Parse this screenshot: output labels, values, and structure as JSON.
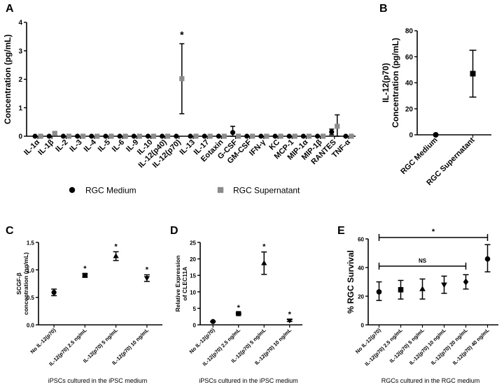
{
  "chart_data": [
    {
      "panel": "A",
      "type": "scatter",
      "ylabel": "Concentration (pg/mL)",
      "ylim": [
        0,
        4
      ],
      "yticks": [
        "0",
        "1",
        "2",
        "3",
        "4"
      ],
      "categories": [
        "IL-1α",
        "IL-1β",
        "IL-2",
        "IL-3",
        "IL-4",
        "IL-5",
        "IL-6",
        "IL-9",
        "IL-10",
        "IL-12(p40)",
        "IL-12(p70)",
        "IL-13",
        "IL-17",
        "Eotaxin",
        "G-CSF",
        "GM-CSF",
        "IFN-γ",
        "KC",
        "MCP-1",
        "MIP-1α",
        "MIP-1β",
        "RANTES",
        "TNF-α"
      ],
      "series": [
        {
          "name": "RGC Medium",
          "marker": "circle",
          "color": "#000000",
          "values": [
            0,
            0,
            0,
            0,
            0,
            0,
            0,
            0,
            0,
            0,
            0,
            0,
            0,
            0,
            0.13,
            0,
            0,
            0,
            0,
            0,
            0,
            0.15,
            0
          ],
          "err": [
            0,
            0,
            0,
            0,
            0,
            0,
            0,
            0,
            0,
            0,
            0,
            0,
            0,
            0,
            0.22,
            0,
            0,
            0,
            0,
            0,
            0,
            0.1,
            0
          ]
        },
        {
          "name": "RGC Supernatant",
          "marker": "square",
          "color": "#8c8c8c",
          "values": [
            0,
            0.1,
            0,
            0,
            0,
            0,
            0,
            0,
            0,
            0,
            2.02,
            0,
            0,
            0,
            0,
            0,
            0,
            0,
            0,
            0,
            0,
            0.35,
            0
          ],
          "err": [
            0,
            0.05,
            0,
            0,
            0,
            0,
            0,
            0,
            0,
            0,
            1.23,
            0,
            0,
            0,
            0,
            0,
            0,
            0,
            0,
            0,
            0,
            0.4,
            0
          ]
        }
      ],
      "annotations": [
        {
          "category": "IL-12(p70)",
          "text": "*"
        }
      ],
      "legend": [
        {
          "label": "RGC Medium",
          "marker": "circle"
        },
        {
          "label": "RGC Supernatant",
          "marker": "square"
        }
      ]
    },
    {
      "panel": "B",
      "type": "scatter",
      "ylabel": [
        "IL-12(p70)",
        "Concentration (pg/mL)"
      ],
      "ylim": [
        0,
        80
      ],
      "yticks": [
        "0",
        "20",
        "40",
        "60",
        "80"
      ],
      "categories": [
        "RGC Medium",
        "RGC Supernatant"
      ],
      "points": [
        {
          "value": 0,
          "low": 0,
          "high": 0,
          "marker": "circle"
        },
        {
          "value": 47,
          "low": 29,
          "high": 65,
          "marker": "square"
        }
      ]
    },
    {
      "panel": "C",
      "type": "scatter",
      "ylabel": [
        "SCGF-β",
        "concentration (ng/mL)"
      ],
      "xlabel": "iPSCs cultured in the iPSC medium",
      "ylim": [
        0,
        1.5
      ],
      "yticks": [
        "0.0",
        "0.5",
        "1.0",
        "1.5"
      ],
      "categories": [
        "No IL-12(p70)",
        "IL-12(p70) 2.5 ng/mL",
        "IL-12(p70) 5 ng/mL",
        "IL-12(p70) 10 ng/mL"
      ],
      "points": [
        {
          "value": 0.59,
          "low": 0.53,
          "high": 0.65,
          "marker": "circle"
        },
        {
          "value": 0.9,
          "low": 0.87,
          "high": 0.93,
          "marker": "square"
        },
        {
          "value": 1.25,
          "low": 1.17,
          "high": 1.33,
          "marker": "triangle"
        },
        {
          "value": 0.85,
          "low": 0.79,
          "high": 0.91,
          "marker": "triangle-down"
        }
      ],
      "annotations": [
        {
          "category": "IL-12(p70) 2.5 ng/mL",
          "text": "*"
        },
        {
          "category": "IL-12(p70) 5 ng/mL",
          "text": "*"
        },
        {
          "category": "IL-12(p70) 10 ng/mL",
          "text": "*"
        }
      ]
    },
    {
      "panel": "D",
      "type": "scatter",
      "ylabel": [
        "Relative Expression",
        "of CLEC11A"
      ],
      "xlabel": "iPSCs cultured in the iPSC medium",
      "ylim": [
        0,
        25
      ],
      "yticks": [
        "0",
        "5",
        "10",
        "15",
        "20",
        "25"
      ],
      "categories": [
        "No IL-12(p70)",
        "IL-12(p70) 2.5 ng/mL",
        "IL-12(p70) 5 ng/mL",
        "IL-12(p70) 10 ng/mL"
      ],
      "points": [
        {
          "value": 1,
          "low": 0.9,
          "high": 1.1,
          "marker": "circle"
        },
        {
          "value": 3.4,
          "low": 3.2,
          "high": 3.6,
          "marker": "square"
        },
        {
          "value": 18.7,
          "low": 15.3,
          "high": 22.1,
          "marker": "triangle"
        },
        {
          "value": 1.3,
          "low": 1.0,
          "high": 1.6,
          "marker": "triangle-down"
        }
      ],
      "annotations": [
        {
          "category": "IL-12(p70) 2.5 ng/mL",
          "text": "*"
        },
        {
          "category": "IL-12(p70) 5 ng/mL",
          "text": "*"
        },
        {
          "category": "IL-12(p70) 10 ng/mL",
          "text": "*"
        }
      ]
    },
    {
      "panel": "E",
      "type": "scatter",
      "ylabel": "% RGC Survival",
      "xlabel": "RGCs cultured in the RGC medium",
      "ylim": [
        0,
        60
      ],
      "yticks": [
        "0",
        "20",
        "40",
        "60"
      ],
      "categories": [
        "No IL-12(p70)",
        "IL-12(p70) 2.5 ng/mL",
        "IL-12(p70) 5 ng/mL",
        "IL-12(p70) 10 ng/mL",
        "IL-12(p70) 20 ng/mL",
        "IL-12(p70) 40 ng/mL"
      ],
      "points": [
        {
          "value": 23,
          "low": 17,
          "high": 30,
          "marker": "circle"
        },
        {
          "value": 24.5,
          "low": 18,
          "high": 31,
          "marker": "square"
        },
        {
          "value": 25,
          "low": 18,
          "high": 32,
          "marker": "triangle"
        },
        {
          "value": 28,
          "low": 22,
          "high": 34,
          "marker": "triangle-down"
        },
        {
          "value": 30,
          "low": 25,
          "high": 35,
          "marker": "diamond"
        },
        {
          "value": 46,
          "low": 37,
          "high": 56,
          "marker": "circle"
        }
      ],
      "brackets": [
        {
          "from": "No IL-12(p70)",
          "to": "IL-12(p70) 40 ng/mL",
          "level": 61,
          "text": "*"
        },
        {
          "from": "No IL-12(p70)",
          "to": "IL-12(p70) 20 ng/mL",
          "level": 41,
          "text": "NS"
        }
      ]
    }
  ]
}
